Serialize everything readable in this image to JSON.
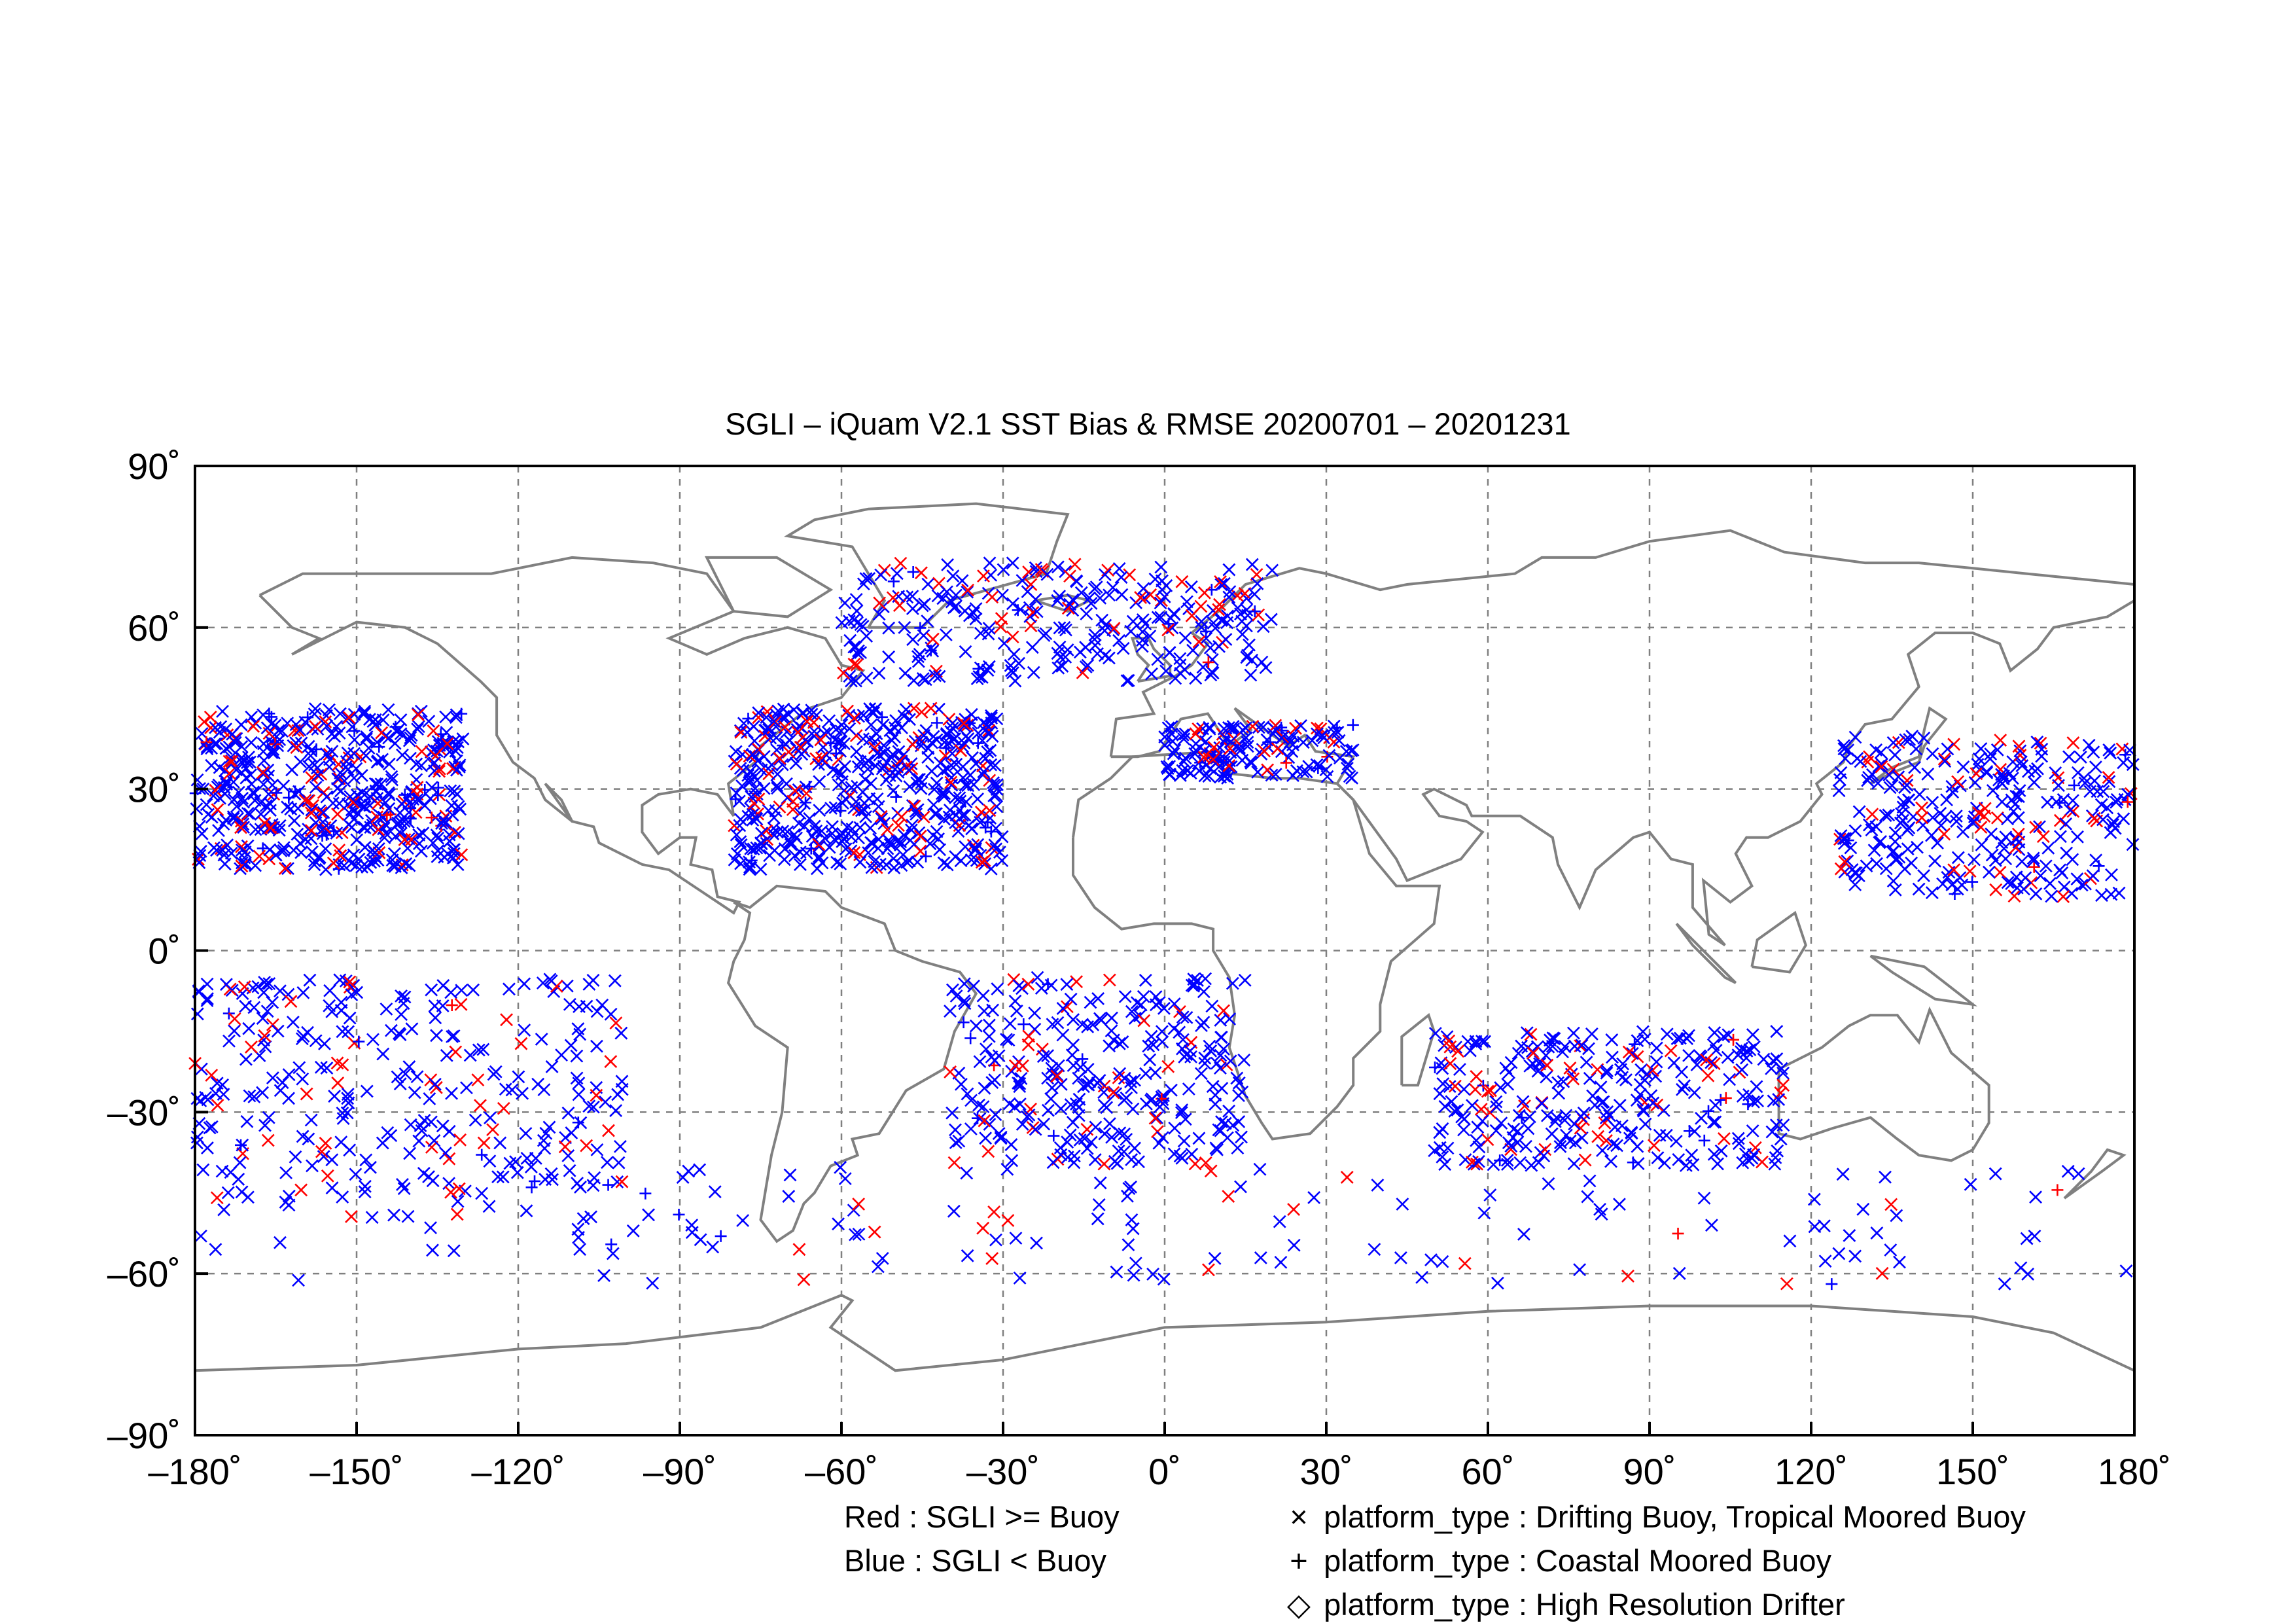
{
  "title": "SGLI – iQuam V2.1 SST Bias & RMSE 20200701 – 20201231",
  "axes": {
    "lon_ticks": [
      "–180˚",
      "–150˚",
      "–120˚",
      "–90˚",
      "–60˚",
      "–30˚",
      "0˚",
      "30˚",
      "60˚",
      "90˚",
      "120˚",
      "150˚",
      "180˚"
    ],
    "lat_ticks": [
      "90˚",
      "60˚",
      "30˚",
      "0˚",
      "–30˚",
      "–60˚",
      "–90˚"
    ],
    "lon_range": [
      -180,
      180
    ],
    "lat_range": [
      -90,
      90
    ],
    "grid": "dashed"
  },
  "legend": {
    "color_key": [
      {
        "label": "Red : SGLI >= Buoy",
        "color": "#ff0000"
      },
      {
        "label": "Blue : SGLI < Buoy",
        "color": "#0000ff"
      }
    ],
    "symbol_key": [
      {
        "symbol": "×",
        "label": "platform_type : Drifting Buoy, Tropical Moored Buoy"
      },
      {
        "symbol": "+",
        "label": "platform_type : Coastal Moored Buoy"
      },
      {
        "symbol": "◇",
        "label": "platform_type : High Resolution Drifter"
      }
    ]
  },
  "colors": {
    "land_outline": "#808080",
    "above_buoy": "#ff0000",
    "below_buoy": "#0000ff",
    "grid": "#808080"
  },
  "chart_data": {
    "type": "scatter",
    "projection": "equirectangular",
    "xlim": [
      -180,
      180
    ],
    "ylim": [
      -90,
      90
    ],
    "point_clusters": [
      {
        "name": "North Pacific",
        "lon": [
          -180,
          -130
        ],
        "lat": [
          15,
          45
        ],
        "density": "very high"
      },
      {
        "name": "North Atlantic",
        "lon": [
          -80,
          -30
        ],
        "lat": [
          15,
          45
        ],
        "density": "very high"
      },
      {
        "name": "Labrador / Greenland seas",
        "lon": [
          -60,
          20
        ],
        "lat": [
          50,
          72
        ],
        "density": "high"
      },
      {
        "name": "South Pacific",
        "lon": [
          -180,
          -100
        ],
        "lat": [
          -45,
          -5
        ],
        "density": "high"
      },
      {
        "name": "South Atlantic",
        "lon": [
          -40,
          15
        ],
        "lat": [
          -40,
          -5
        ],
        "density": "high"
      },
      {
        "name": "Indian Ocean",
        "lon": [
          50,
          115
        ],
        "lat": [
          -40,
          -15
        ],
        "density": "high"
      },
      {
        "name": "Northwest Pacific",
        "lon": [
          125,
          180
        ],
        "lat": [
          10,
          40
        ],
        "density": "high"
      },
      {
        "name": "Mediterranean",
        "lon": [
          0,
          35
        ],
        "lat": [
          32,
          42
        ],
        "density": "medium"
      },
      {
        "name": "Southern Ocean",
        "lon": [
          -180,
          180
        ],
        "lat": [
          -62,
          -40
        ],
        "density": "medium"
      }
    ]
  }
}
